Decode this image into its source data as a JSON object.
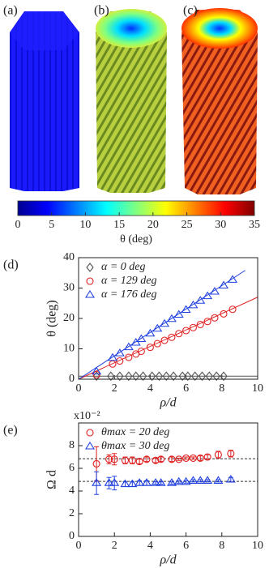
{
  "panels": [
    "(a)",
    "(b)",
    "(c)"
  ],
  "chart_data": [
    {
      "type": "colorbar",
      "xlabel": "θ (deg)",
      "xlim": [
        0,
        35
      ],
      "xticks": [
        0,
        5,
        10,
        15,
        20,
        25,
        30,
        35
      ],
      "colors": [
        "#00008f",
        "#0000ff",
        "#0080ff",
        "#00ffff",
        "#80ff80",
        "#ffff00",
        "#ff8000",
        "#ff0000",
        "#800000"
      ]
    },
    {
      "type": "scatter",
      "panel": "(d)",
      "xlabel": "ρ/d",
      "ylabel": "θ (deg)",
      "xlim": [
        0,
        10
      ],
      "ylim": [
        0,
        40
      ],
      "xticks": [
        0,
        2,
        4,
        6,
        8,
        10
      ],
      "yticks": [
        0,
        10,
        20,
        30,
        40
      ],
      "series": [
        {
          "name": "α =    0 deg",
          "color": "#555555",
          "marker": "diamond",
          "x": [
            1.0,
            1.8,
            2.3,
            2.8,
            3.2,
            3.6,
            4.1,
            4.5,
            4.9,
            5.3,
            5.8,
            6.1,
            6.5,
            6.9,
            7.3,
            7.7,
            8.1
          ],
          "values": [
            1,
            1,
            1,
            1,
            1,
            1,
            1,
            1,
            1,
            1,
            1,
            1,
            1,
            1,
            1,
            1,
            1
          ]
        },
        {
          "name": "α = 129 deg",
          "color": "#e02020",
          "marker": "circle",
          "x": [
            1.0,
            1.9,
            2.3,
            2.8,
            3.2,
            3.5,
            4.0,
            4.4,
            4.8,
            5.2,
            5.6,
            6.0,
            6.4,
            6.8,
            7.2,
            7.6,
            8.1,
            8.6
          ],
          "values": [
            1.5,
            5,
            6,
            7.2,
            8.3,
            9.2,
            10.5,
            11.7,
            12.8,
            13.8,
            15,
            16,
            17,
            18,
            19,
            20.2,
            21.5,
            23
          ]
        },
        {
          "name": "α = 176 deg",
          "color": "#2040e0",
          "marker": "triangle",
          "x": [
            1.0,
            1.9,
            2.3,
            2.8,
            3.2,
            3.5,
            4.0,
            4.4,
            4.8,
            5.2,
            5.6,
            6.0,
            6.4,
            6.8,
            7.2,
            7.6,
            8.1,
            8.6
          ],
          "values": [
            2.5,
            7,
            8.5,
            10.5,
            12,
            13.2,
            15,
            16.6,
            18.2,
            19.8,
            21.2,
            22.8,
            24.3,
            25.8,
            27.3,
            28.8,
            30.8,
            32.7
          ]
        }
      ],
      "lines": [
        {
          "color": "#555555",
          "dash": false,
          "x": [
            0,
            10
          ],
          "values": [
            1,
            1
          ]
        },
        {
          "color": "#e02020",
          "dash": false,
          "x": [
            0,
            10
          ],
          "values": [
            0,
            27
          ]
        },
        {
          "color": "#2040e0",
          "dash": false,
          "x": [
            0,
            9.3
          ],
          "values": [
            0,
            35.8
          ]
        }
      ]
    },
    {
      "type": "errorbar",
      "panel": "(e)",
      "xlabel": "ρ/d",
      "ylabel": "Ω d",
      "y_multiplier": "x10⁻²",
      "xlim": [
        0,
        10
      ],
      "ylim": [
        0,
        10
      ],
      "xticks": [
        0,
        2,
        4,
        6,
        8,
        10
      ],
      "yticks": [
        0,
        2,
        4,
        6,
        8
      ],
      "series": [
        {
          "name": "θmax = 20 deg",
          "color": "#e02020",
          "marker": "circle",
          "x": [
            1.0,
            1.7,
            2.0,
            2.6,
            3.0,
            3.4,
            3.8,
            4.3,
            4.6,
            5.2,
            5.6,
            6.0,
            6.4,
            6.8,
            7.2,
            7.8,
            8.5
          ],
          "values": [
            6.4,
            6.8,
            6.8,
            6.7,
            6.7,
            6.6,
            6.8,
            6.7,
            6.8,
            6.8,
            6.8,
            6.9,
            6.9,
            6.9,
            7.0,
            7.2,
            7.3
          ],
          "errors": [
            1.5,
            0.4,
            0.5,
            0.3,
            0.3,
            0.2,
            0.2,
            0.2,
            0.2,
            0.2,
            0.1,
            0.1,
            0.1,
            0.2,
            0.2,
            0.3,
            0.3
          ]
        },
        {
          "name": "θmax = 30 deg",
          "color": "#2040e0",
          "marker": "triangle",
          "x": [
            1.0,
            1.7,
            2.0,
            2.6,
            3.0,
            3.4,
            3.8,
            4.3,
            4.6,
            5.2,
            5.6,
            6.0,
            6.4,
            6.8,
            7.2,
            7.8,
            8.5
          ],
          "values": [
            4.7,
            4.7,
            4.7,
            4.6,
            4.6,
            4.7,
            4.7,
            4.7,
            4.7,
            4.7,
            4.8,
            4.8,
            4.9,
            4.9,
            4.9,
            4.9,
            5.0
          ],
          "errors": [
            1.0,
            0.5,
            0.6,
            0.2,
            0.2,
            0.2,
            0.2,
            0.1,
            0.1,
            0.1,
            0.1,
            0.1,
            0.1,
            0.1,
            0.1,
            0.1,
            0.2
          ]
        }
      ],
      "lines": [
        {
          "color": "#333333",
          "dash": true,
          "x": [
            0,
            10
          ],
          "values": [
            6.85,
            6.85
          ]
        },
        {
          "color": "#333333",
          "dash": true,
          "x": [
            0,
            10
          ],
          "values": [
            4.85,
            4.85
          ]
        }
      ]
    }
  ]
}
